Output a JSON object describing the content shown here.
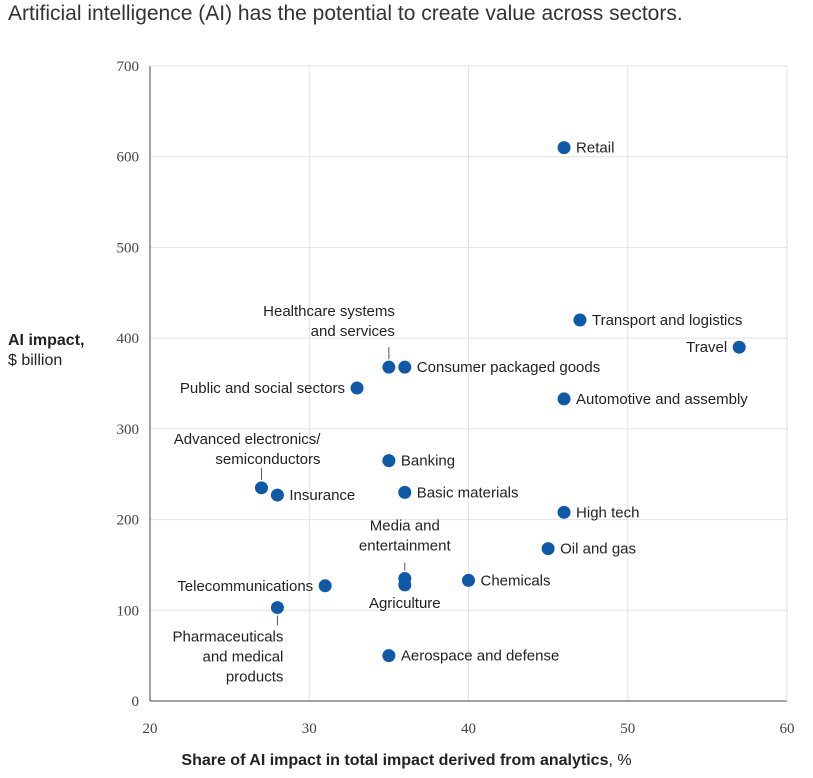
{
  "title": "Artificial intelligence (AI) has the potential to create value across sectors.",
  "ylabel": {
    "bold": "AI impact,",
    "unit": "$ billion"
  },
  "xlabel": {
    "bold": "Share of AI impact in total impact derived from analytics",
    "unit": ", %"
  },
  "colors": {
    "point": "#0f5aa8",
    "grid": "#e2e2e2",
    "axis": "#444444"
  },
  "chart_data": {
    "type": "scatter",
    "xlim": [
      20,
      60
    ],
    "ylim": [
      0,
      700
    ],
    "xticks": [
      20,
      30,
      40,
      50,
      60
    ],
    "yticks": [
      0,
      100,
      200,
      300,
      400,
      500,
      600,
      700
    ],
    "grid": true,
    "points": [
      {
        "label": "Retail",
        "x": 46,
        "y": 610
      },
      {
        "label": "Transport and logistics",
        "x": 47,
        "y": 420
      },
      {
        "label": "Travel",
        "x": 57,
        "y": 390
      },
      {
        "label": "Healthcare systems\nand services",
        "x": 35,
        "y": 368
      },
      {
        "label": "Consumer packaged goods",
        "x": 36,
        "y": 368
      },
      {
        "label": "Public and social sectors",
        "x": 33,
        "y": 345
      },
      {
        "label": "Automotive and assembly",
        "x": 46,
        "y": 333
      },
      {
        "label": "Banking",
        "x": 35,
        "y": 265
      },
      {
        "label": "Advanced electronics/\nsemiconductors",
        "x": 27,
        "y": 235
      },
      {
        "label": "Insurance",
        "x": 28,
        "y": 227
      },
      {
        "label": "Basic materials",
        "x": 36,
        "y": 230
      },
      {
        "label": "High tech",
        "x": 46,
        "y": 208
      },
      {
        "label": "Oil and gas",
        "x": 45,
        "y": 168
      },
      {
        "label": "Media and\nentertainment",
        "x": 36,
        "y": 135
      },
      {
        "label": "Agriculture",
        "x": 36,
        "y": 128
      },
      {
        "label": "Chemicals",
        "x": 40,
        "y": 133
      },
      {
        "label": "Telecommunications",
        "x": 31,
        "y": 127
      },
      {
        "label": "Pharmaceuticals\nand medical\nproducts",
        "x": 28,
        "y": 103
      },
      {
        "label": "Aerospace and defense",
        "x": 35,
        "y": 50
      }
    ]
  }
}
